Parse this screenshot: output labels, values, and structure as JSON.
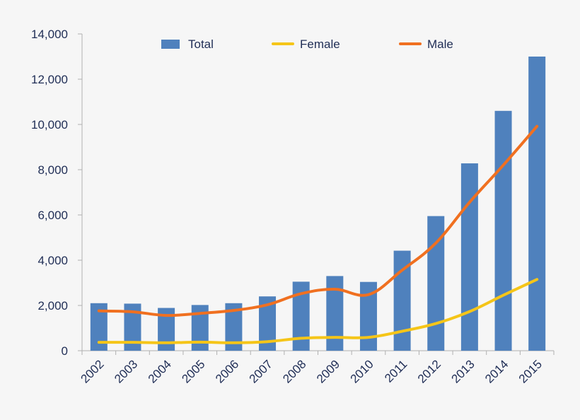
{
  "chart_data": {
    "type": "bar",
    "categories": [
      "2002",
      "2003",
      "2004",
      "2005",
      "2006",
      "2007",
      "2008",
      "2009",
      "2010",
      "2011",
      "2012",
      "2013",
      "2014",
      "2015"
    ],
    "series": [
      {
        "name": "Total",
        "kind": "bar",
        "color": "#4f81bd",
        "values": [
          2100,
          2080,
          1890,
          2020,
          2100,
          2400,
          3050,
          3300,
          3040,
          4420,
          5950,
          8280,
          10600,
          13000
        ]
      },
      {
        "name": "Female",
        "kind": "line",
        "color": "#f5c518",
        "values": [
          370,
          370,
          350,
          380,
          350,
          400,
          550,
          590,
          590,
          860,
          1200,
          1730,
          2450,
          3150
        ]
      },
      {
        "name": "Male",
        "kind": "line",
        "color": "#f07020",
        "values": [
          1760,
          1720,
          1560,
          1650,
          1780,
          2030,
          2520,
          2720,
          2480,
          3560,
          4760,
          6560,
          8200,
          9920
        ]
      }
    ],
    "y_ticks": [
      "0",
      "2,000",
      "4,000",
      "6,000",
      "8,000",
      "10,000",
      "12,000",
      "14,000"
    ],
    "ylim": [
      0,
      14000
    ],
    "grid": false,
    "legend_position": "top"
  }
}
